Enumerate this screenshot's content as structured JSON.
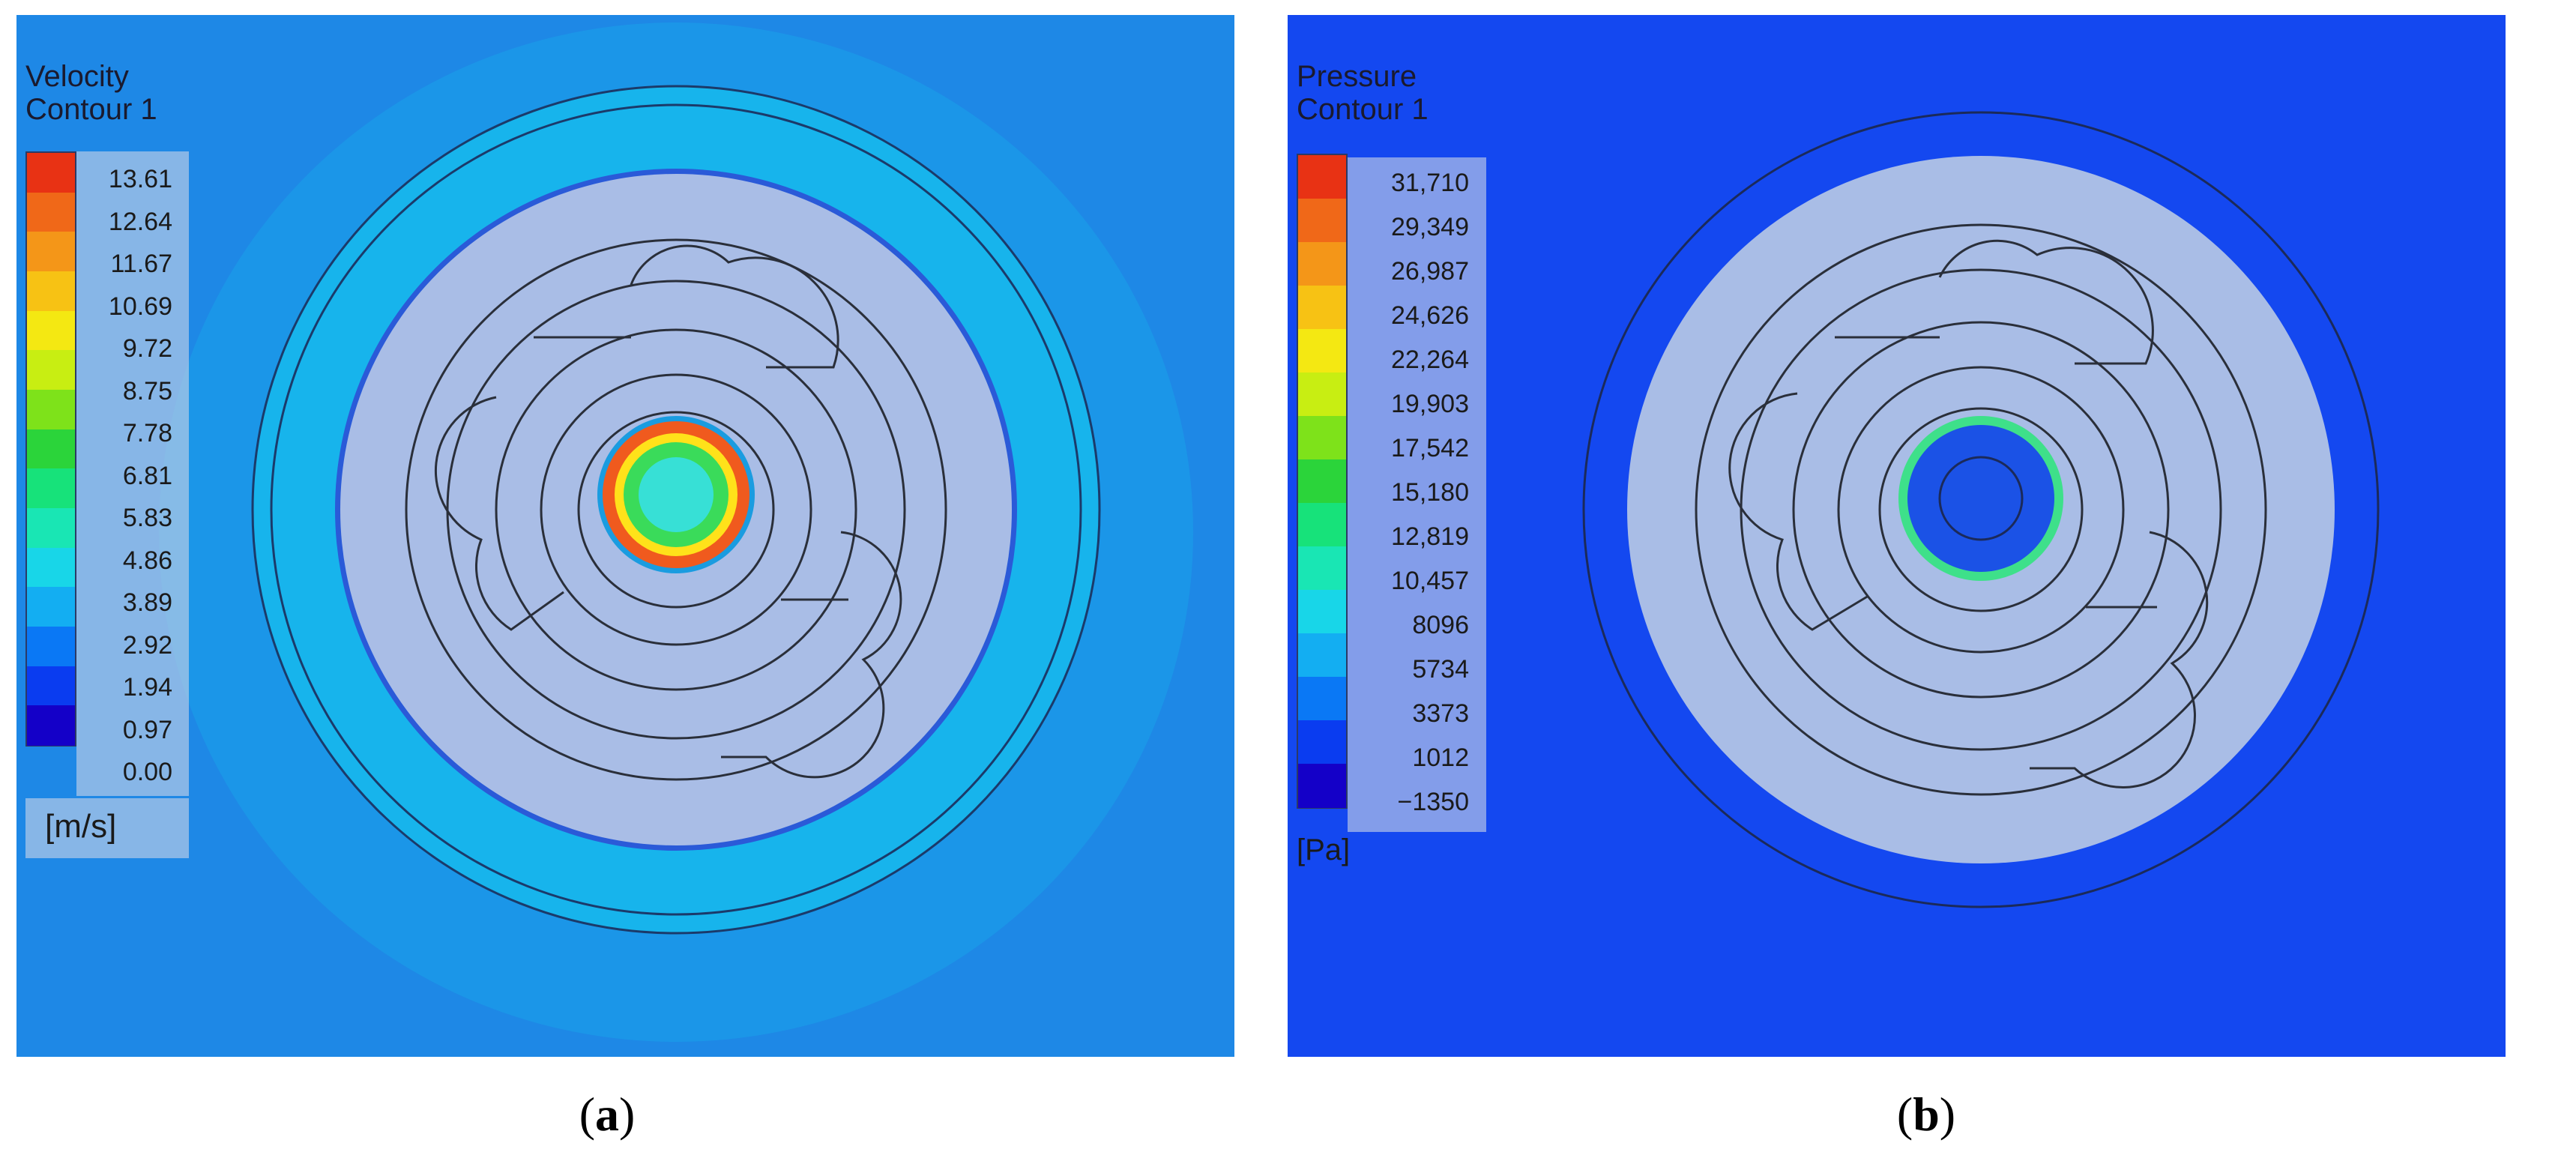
{
  "panels": [
    {
      "id": "a",
      "title_line1": "Velocity",
      "title_line2": "Contour 1",
      "ticks": [
        "13.61",
        "12.64",
        "11.67",
        "10.69",
        "9.72",
        "8.75",
        "7.78",
        "6.81",
        "5.83",
        "4.86",
        "3.89",
        "2.92",
        "1.94",
        "0.97",
        "0.00"
      ],
      "unit": "[m/s]",
      "caption_open": "(",
      "caption_letter": "a",
      "caption_close": ")",
      "colors": {
        "background": "#1e88e6",
        "annulus": "#17b4ec",
        "disc": "#a9bde6",
        "core_outer": "#f05a1e",
        "core_mid": "#ffe21a",
        "core_inner": "#37e0d6"
      }
    },
    {
      "id": "b",
      "title_line1": "Pressure",
      "title_line2": "Contour 1",
      "ticks": [
        "31,710",
        "29,349",
        "26,987",
        "24,626",
        "22,264",
        "19,903",
        "17,542",
        "15,180",
        "12,819",
        "10,457",
        "8096",
        "5734",
        "3373",
        "1012",
        "−1350"
      ],
      "unit": "[Pa]",
      "caption_open": "(",
      "caption_letter": "b",
      "caption_close": ")",
      "colors": {
        "background": "#1448f0",
        "disc": "#a9bde6",
        "core_ring": "#3ee08a",
        "core_fill": "#1b52e6"
      }
    }
  ],
  "colormap": [
    "#1400c8",
    "#0a3cf0",
    "#0a78f5",
    "#13aef2",
    "#18d6e8",
    "#19e6b4",
    "#17e27a",
    "#2bd43a",
    "#7ee21a",
    "#c8ee12",
    "#f4e812",
    "#f7c214",
    "#f49618",
    "#f06818",
    "#e83214"
  ]
}
